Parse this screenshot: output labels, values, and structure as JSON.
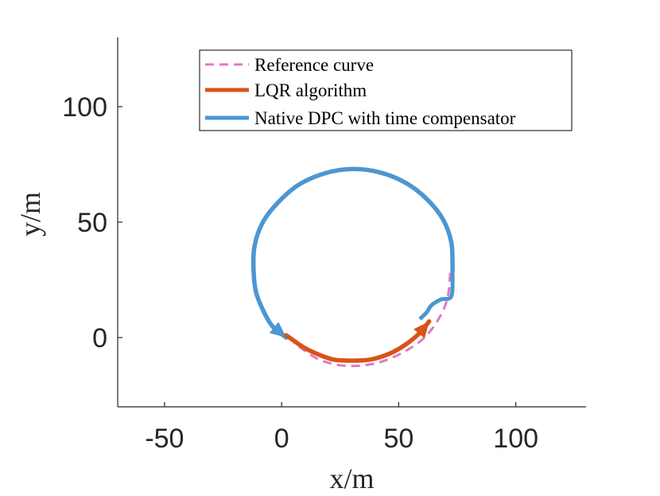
{
  "chart_data": {
    "type": "line",
    "title": "",
    "xlabel": "x/m",
    "ylabel": "y/m",
    "xlim": [
      -70,
      130
    ],
    "ylim": [
      -30,
      130
    ],
    "x_ticks": [
      -50,
      0,
      50,
      100
    ],
    "x_tick_labels": [
      "-50",
      "0",
      "50",
      "100"
    ],
    "y_ticks": [
      0,
      50,
      100
    ],
    "y_tick_labels": [
      "0",
      "50",
      "100"
    ],
    "grid": false,
    "legend_position": "top",
    "series": [
      {
        "name": "Reference curve",
        "color": "#e377c2",
        "style": "dashed",
        "points": [
          [
            72,
            28
          ],
          [
            70.8,
            17
          ],
          [
            67,
            8
          ],
          [
            61,
            0
          ],
          [
            53.5,
            -5.5
          ],
          [
            44,
            -10
          ],
          [
            35,
            -12
          ],
          [
            25,
            -12
          ],
          [
            15,
            -9
          ],
          [
            5,
            -2
          ]
        ]
      },
      {
        "name": "LQR algorithm",
        "color": "#d95319",
        "style": "solid",
        "points": [
          [
            63,
            7
          ],
          [
            59,
            2
          ],
          [
            53,
            -3
          ],
          [
            46,
            -7
          ],
          [
            38,
            -9.5
          ],
          [
            30,
            -10
          ],
          [
            22,
            -9.5
          ],
          [
            15,
            -7
          ],
          [
            9,
            -4
          ],
          [
            2,
            1
          ]
        ]
      },
      {
        "name": "Native DPC with time compensator",
        "color": "#4d96d1",
        "style": "solid",
        "points": [
          [
            73,
            29
          ],
          [
            72.5,
            41
          ],
          [
            69,
            51
          ],
          [
            62,
            60
          ],
          [
            53,
            67
          ],
          [
            42,
            71.5
          ],
          [
            30,
            73
          ],
          [
            18,
            71
          ],
          [
            7,
            66
          ],
          [
            -2,
            58
          ],
          [
            -8,
            50
          ],
          [
            -11.5,
            40
          ],
          [
            -12,
            30
          ],
          [
            -11,
            20
          ],
          [
            -8,
            12
          ],
          [
            -4,
            5
          ],
          [
            2,
            0
          ]
        ]
      }
    ],
    "blue_connector": [
      [
        73,
        29
      ],
      [
        72.5,
        18
      ],
      [
        68,
        16.5
      ],
      [
        64,
        14
      ],
      [
        62,
        11
      ],
      [
        59,
        8
      ]
    ]
  }
}
